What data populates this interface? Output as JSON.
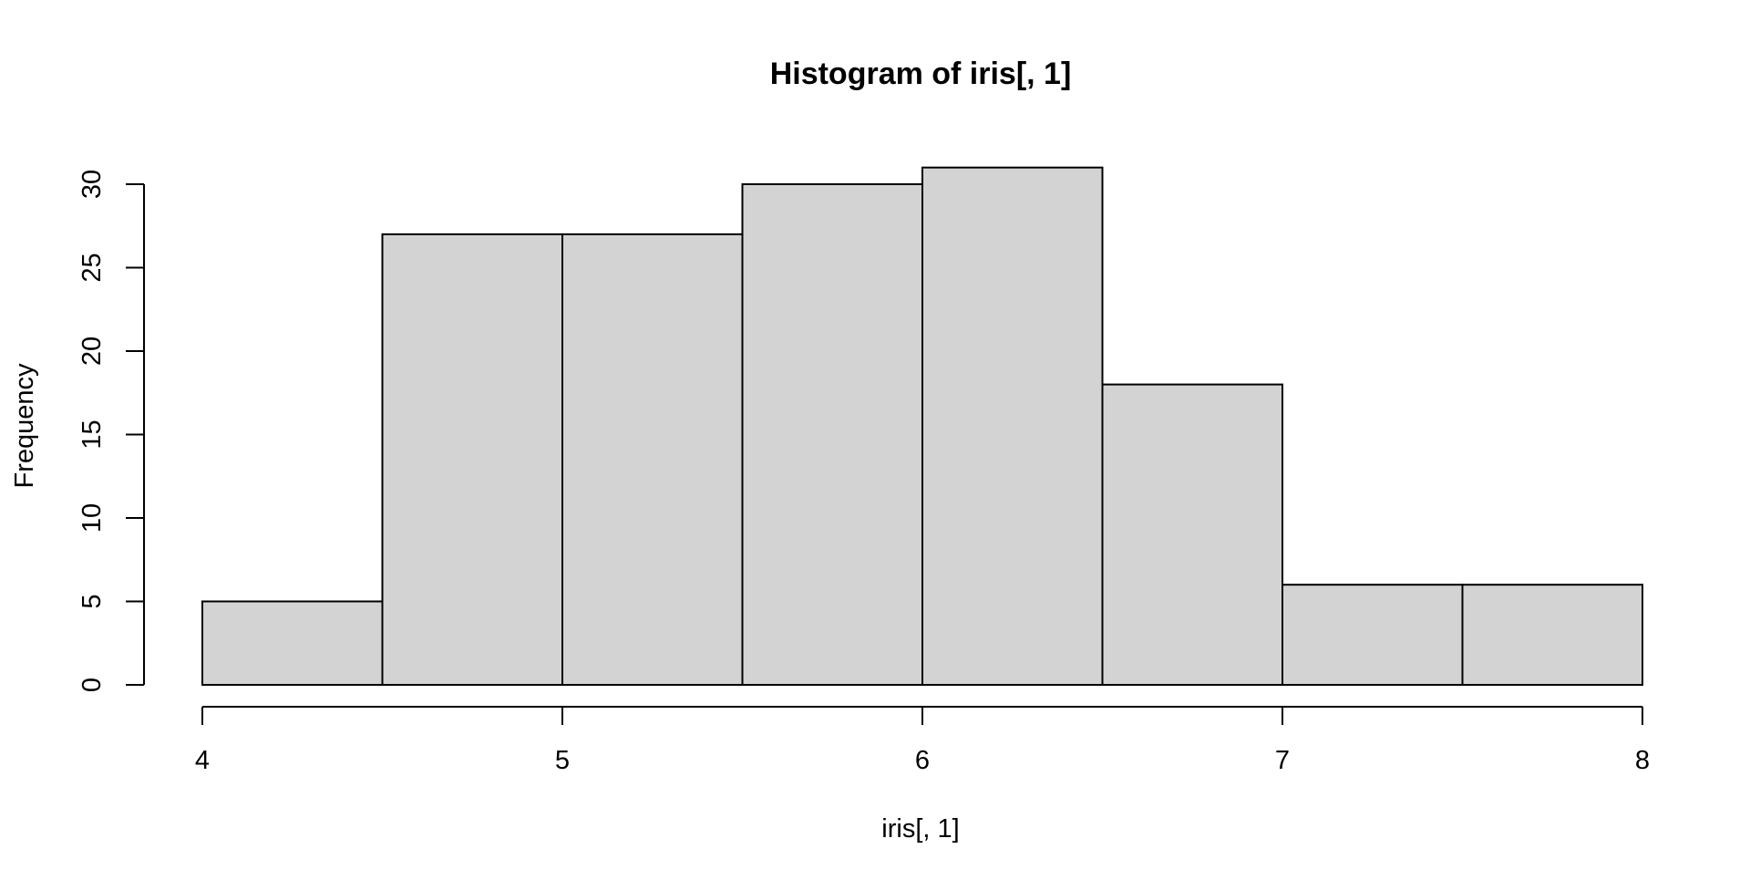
{
  "chart_data": {
    "type": "bar",
    "subtype": "histogram",
    "title": "Histogram of iris[, 1]",
    "xlabel": "iris[, 1]",
    "ylabel": "Frequency",
    "bins": [
      {
        "start": 4.0,
        "end": 4.5,
        "value": 5
      },
      {
        "start": 4.5,
        "end": 5.0,
        "value": 27
      },
      {
        "start": 5.0,
        "end": 5.5,
        "value": 27
      },
      {
        "start": 5.5,
        "end": 6.0,
        "value": 30
      },
      {
        "start": 6.0,
        "end": 6.5,
        "value": 31
      },
      {
        "start": 6.5,
        "end": 7.0,
        "value": 18
      },
      {
        "start": 7.0,
        "end": 7.5,
        "value": 6
      },
      {
        "start": 7.5,
        "end": 8.0,
        "value": 6
      }
    ],
    "xlim": [
      4,
      8
    ],
    "ylim": [
      0,
      31
    ],
    "x_ticks": [
      4,
      5,
      6,
      7,
      8
    ],
    "y_ticks": [
      0,
      5,
      10,
      15,
      20,
      25,
      30
    ],
    "grid": false,
    "legend": "none",
    "bar_color": "#d3d3d3",
    "edge_color": "#000000"
  }
}
